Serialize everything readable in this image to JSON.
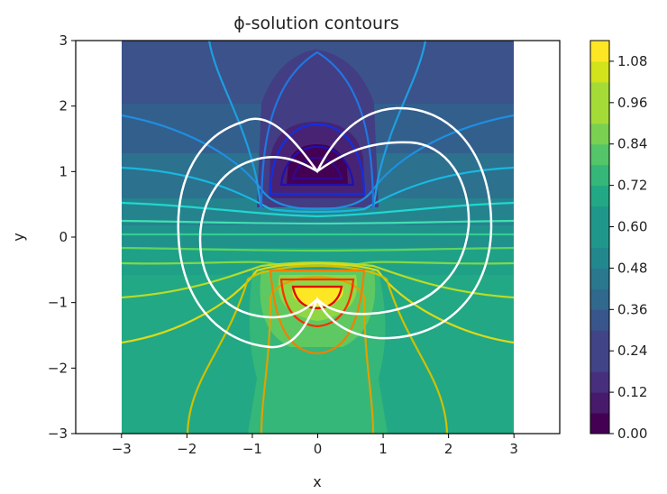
{
  "chart_data": {
    "type": "contour",
    "title": "ϕ-solution contours",
    "xlabel": "x",
    "ylabel": "y",
    "xlim": [
      -3.7,
      3.7
    ],
    "ylim": [
      -3,
      3
    ],
    "x_ticks": [
      "−3",
      "−2",
      "−1",
      "0",
      "1",
      "2",
      "3"
    ],
    "x_tick_values": [
      -3,
      -2,
      -1,
      0,
      1,
      2,
      3
    ],
    "y_ticks": [
      "−3",
      "−2",
      "−1",
      "0",
      "1",
      "2",
      "3"
    ],
    "y_tick_values": [
      -3,
      -2,
      -1,
      0,
      1,
      2,
      3
    ],
    "colorbar": {
      "colormap": "viridis",
      "range": [
        0,
        1.14
      ],
      "tick_values": [
        0.0,
        0.12,
        0.24,
        0.36,
        0.48,
        0.6,
        0.72,
        0.84,
        0.96,
        1.08
      ],
      "tick_labels": [
        "0.00",
        "0.12",
        "0.24",
        "0.36",
        "0.48",
        "0.60",
        "0.72",
        "0.84",
        "0.96",
        "1.08"
      ]
    },
    "field_domain": {
      "x": [
        -3,
        3
      ],
      "y": [
        -3,
        3
      ]
    },
    "sources": [
      {
        "x": 0,
        "y": 1,
        "kind": "minimum"
      },
      {
        "x": 0,
        "y": -1,
        "kind": "maximum"
      }
    ],
    "overlay_curves": {
      "color": "#ffffff",
      "count": 2,
      "style": "closed loop"
    }
  }
}
